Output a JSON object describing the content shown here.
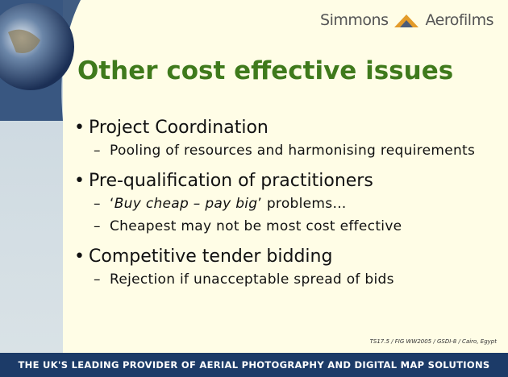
{
  "header": {
    "brand_left": "Simmons",
    "brand_right": "Aerofilms"
  },
  "title": "Other cost effective issues",
  "bullets": [
    {
      "text": "Project Coordination",
      "subs": [
        {
          "parts": [
            "Pooling of resources and harmonising requirements"
          ]
        }
      ]
    },
    {
      "text": "Pre-qualification of practitioners",
      "subs": [
        {
          "parts": [
            "‘",
            "Buy cheap – pay big",
            "’ problems…"
          ]
        },
        {
          "parts": [
            "Cheapest may not be most cost effective"
          ]
        }
      ]
    },
    {
      "text": "Competitive tender bidding",
      "subs": [
        {
          "parts": [
            "Rejection if unacceptable spread of bids"
          ]
        }
      ]
    }
  ],
  "reference": "TS17.5 / FIG WW2005 / GSDI-8 / Cairo, Egypt",
  "footer": "THE UK'S LEADING PROVIDER OF AERIAL PHOTOGRAPHY AND DIGITAL MAP SOLUTIONS"
}
